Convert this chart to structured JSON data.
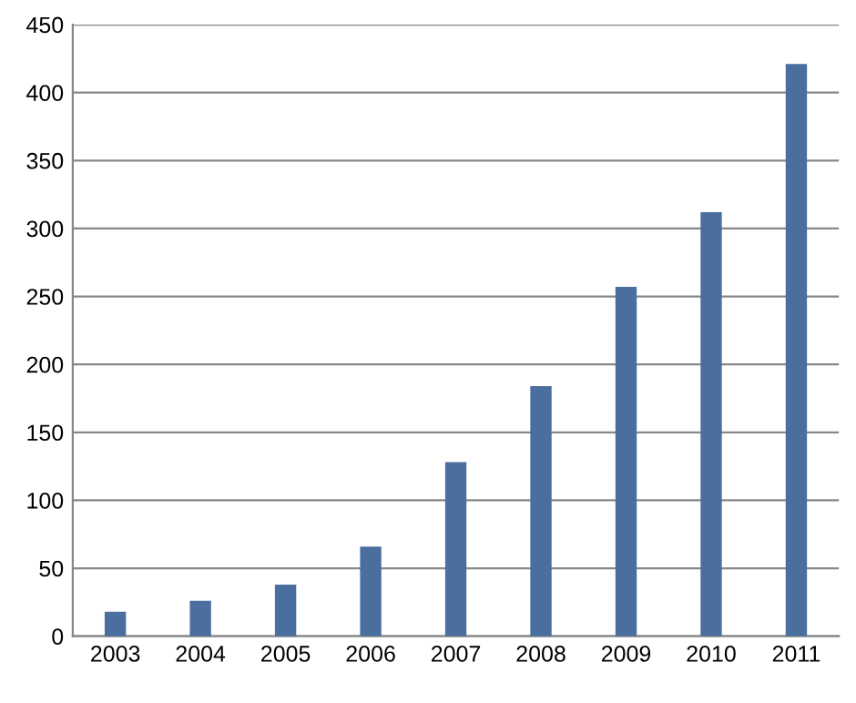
{
  "chart_data": {
    "type": "bar",
    "categories": [
      "2003",
      "2004",
      "2005",
      "2006",
      "2007",
      "2008",
      "2009",
      "2010",
      "2011"
    ],
    "values": [
      18,
      26,
      38,
      66,
      128,
      184,
      257,
      312,
      421
    ],
    "color": "#4a6f9f",
    "ylim": [
      0,
      450
    ],
    "yticks": [
      0,
      50,
      100,
      150,
      200,
      250,
      300,
      350,
      400,
      450
    ],
    "grid": "y",
    "legend": false
  }
}
